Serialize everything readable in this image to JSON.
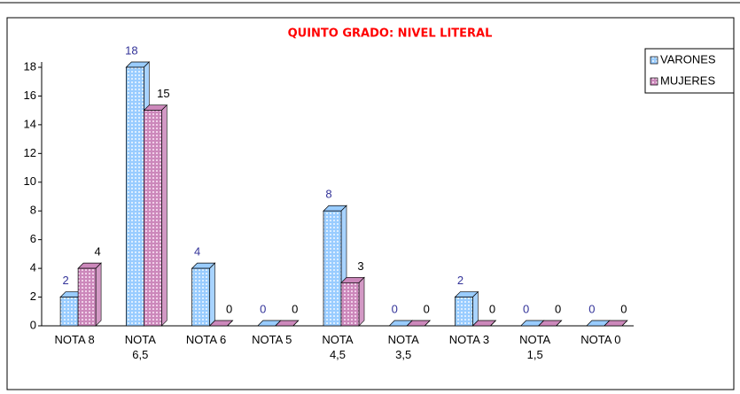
{
  "chart_data": {
    "type": "bar",
    "title": "QUINTO GRADO: NIVEL LITERAL",
    "categories": [
      "NOTA 8",
      "NOTA 6,5",
      "NOTA 6",
      "NOTA 5",
      "NOTA 4,5",
      "NOTA 3,5",
      "NOTA 3",
      "NOTA 1,5",
      "NOTA 0"
    ],
    "series": [
      {
        "name": "VARONES",
        "color": "#99ccff",
        "values": [
          2,
          18,
          4,
          0,
          8,
          0,
          2,
          0,
          0
        ]
      },
      {
        "name": "MUJERES",
        "color": "#cc88bb",
        "values": [
          4,
          15,
          0,
          0,
          3,
          0,
          0,
          0,
          0
        ]
      }
    ],
    "ylim": [
      0,
      18
    ],
    "yticks": [
      0,
      2,
      4,
      6,
      8,
      10,
      12,
      14,
      16,
      18
    ],
    "legend": "right"
  }
}
